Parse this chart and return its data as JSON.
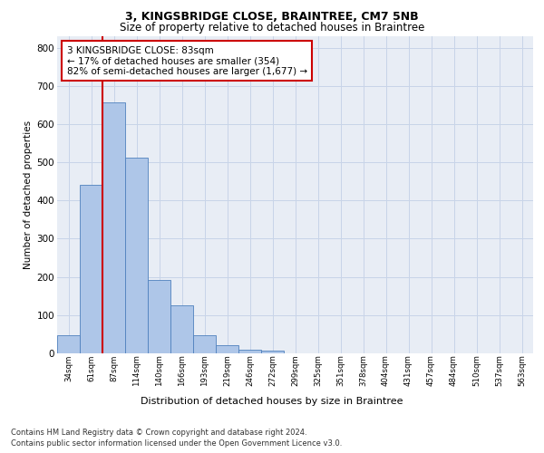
{
  "title1": "3, KINGSBRIDGE CLOSE, BRAINTREE, CM7 5NB",
  "title2": "Size of property relative to detached houses in Braintree",
  "xlabel": "Distribution of detached houses by size in Braintree",
  "ylabel": "Number of detached properties",
  "footnote1": "Contains HM Land Registry data © Crown copyright and database right 2024.",
  "footnote2": "Contains public sector information licensed under the Open Government Licence v3.0.",
  "annotation_line1": "3 KINGSBRIDGE CLOSE: 83sqm",
  "annotation_line2": "← 17% of detached houses are smaller (354)",
  "annotation_line3": "82% of semi-detached houses are larger (1,677) →",
  "bar_values": [
    47,
    440,
    657,
    513,
    193,
    125,
    47,
    22,
    10,
    8,
    0,
    0,
    0,
    0,
    0,
    0,
    0,
    0,
    0,
    0,
    0
  ],
  "bar_labels": [
    "34sqm",
    "61sqm",
    "87sqm",
    "114sqm",
    "140sqm",
    "166sqm",
    "193sqm",
    "219sqm",
    "246sqm",
    "272sqm",
    "299sqm",
    "325sqm",
    "351sqm",
    "378sqm",
    "404sqm",
    "431sqm",
    "457sqm",
    "484sqm",
    "510sqm",
    "537sqm",
    "563sqm"
  ],
  "bar_color": "#aec6e8",
  "bar_edge_color": "#4f81bd",
  "grid_color": "#c8d4e8",
  "bg_color": "#e8edf5",
  "vline_color": "#cc0000",
  "annotation_box_color": "#cc0000",
  "ylim": [
    0,
    830
  ],
  "yticks": [
    0,
    100,
    200,
    300,
    400,
    500,
    600,
    700,
    800
  ]
}
